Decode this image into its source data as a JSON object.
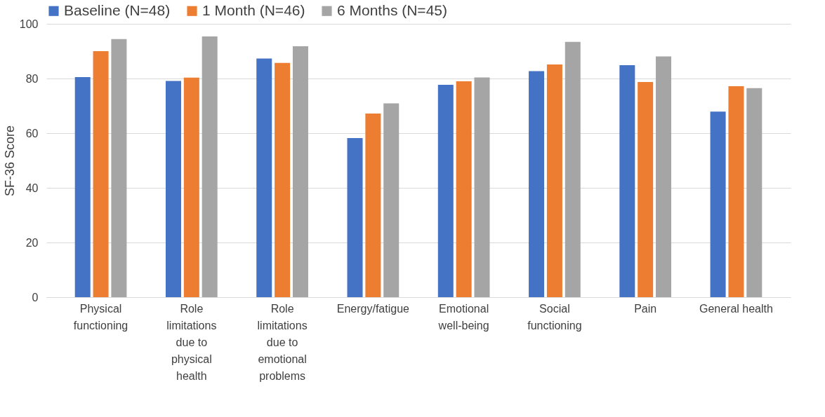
{
  "chart_data": {
    "type": "bar",
    "ylabel": "SF-36 Score",
    "categories": [
      "Physical functioning",
      "Role limitations due to physical health",
      "Role limitations due to emotional problems",
      "Energy/fatigue",
      "Emotional well-being",
      "Social functioning",
      "Pain",
      "General health"
    ],
    "series": [
      {
        "name": "Baseline (N=48)",
        "color": "#4472c4",
        "values": [
          80.5,
          79.1,
          87.3,
          58.2,
          77.7,
          82.7,
          84.9,
          67.9
        ]
      },
      {
        "name": "1 Month (N=46)",
        "color": "#ed7d31",
        "values": [
          90.0,
          80.3,
          85.7,
          67.2,
          79.0,
          85.1,
          78.7,
          77.2
        ]
      },
      {
        "name": "6 Months (N=45)",
        "color": "#a5a5a5",
        "values": [
          94.4,
          95.4,
          91.8,
          70.9,
          80.4,
          93.4,
          88.1,
          76.5
        ]
      }
    ],
    "ylim": [
      0,
      100
    ],
    "yticks": [
      0,
      20,
      40,
      60,
      80,
      100
    ],
    "grid": "y",
    "legend": "top"
  }
}
